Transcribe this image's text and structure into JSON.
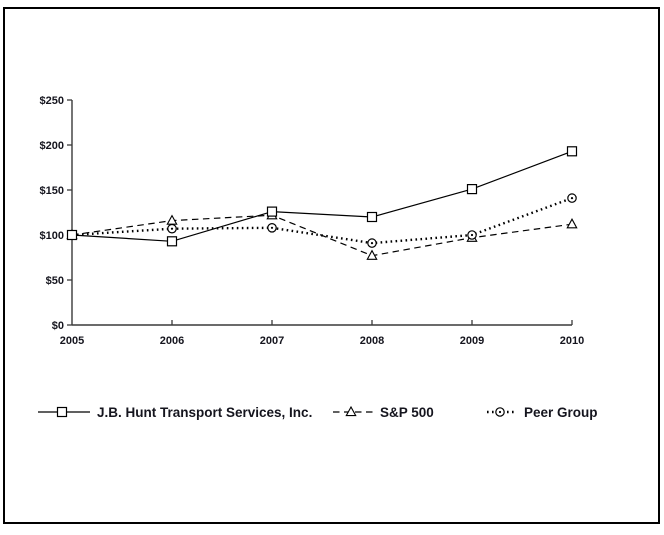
{
  "figure": {
    "background_color": "#ffffff",
    "border_color": "#000000",
    "text_color": "#15151e",
    "axis_color": "#3a3a3a",
    "title": ""
  },
  "chart_data": {
    "type": "line",
    "title": "",
    "xlabel": "",
    "ylabel": "",
    "grid": false,
    "legend_position": "bottom",
    "categories": [
      "2005",
      "2006",
      "2007",
      "2008",
      "2009",
      "2010"
    ],
    "ylim": [
      0,
      250
    ],
    "y_ticks": [
      {
        "value": 0,
        "label": "$0"
      },
      {
        "value": 50,
        "label": "$50"
      },
      {
        "value": 100,
        "label": "$100"
      },
      {
        "value": 150,
        "label": "$150"
      },
      {
        "value": 200,
        "label": "$200"
      },
      {
        "value": 250,
        "label": "$250"
      }
    ],
    "series": [
      {
        "name": "J.B. Hunt Transport Services, Inc.",
        "marker": "open-square",
        "line_style": "solid",
        "color": "#000000",
        "values": [
          100,
          93,
          126,
          120,
          151,
          193
        ]
      },
      {
        "name": "S&P 500",
        "marker": "open-triangle",
        "line_style": "dashed",
        "color": "#000000",
        "values": [
          100,
          116,
          122,
          77,
          97,
          112
        ]
      },
      {
        "name": "Peer Group",
        "marker": "circled-dot",
        "line_style": "dotted",
        "color": "#000000",
        "values": [
          100,
          107,
          108,
          91,
          100,
          141
        ]
      }
    ]
  }
}
